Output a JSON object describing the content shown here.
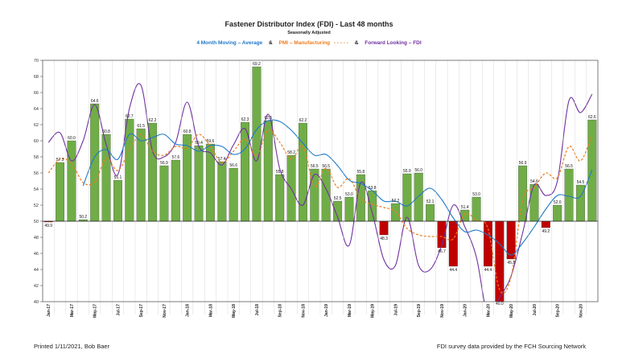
{
  "chart_data": {
    "type": "bar",
    "title": "Fastener Distributor Index (FDI) - Last 48 months",
    "subtitle": "Seasonally Adjusted",
    "legend": {
      "position": "top",
      "items": [
        {
          "text": "4 Month Moving – Average",
          "color": "#1f78c8"
        },
        {
          "text": "&",
          "color": "#222222"
        },
        {
          "text": "PMI – Manufacturing",
          "color": "#ee7d1e",
          "sample": "- - - - -"
        },
        {
          "text": "&",
          "color": "#222222"
        },
        {
          "text": "Forward Looking – FDI",
          "color": "#7030a0"
        }
      ]
    },
    "ylim": [
      40,
      70
    ],
    "yticks": [
      40,
      42,
      44,
      46,
      48,
      50,
      52,
      54,
      56,
      58,
      60,
      62,
      64,
      66,
      68,
      70
    ],
    "baseline": 50,
    "grid": false,
    "xticklabels": [
      "Jan-17",
      "",
      "Mar-17",
      "",
      "May-17",
      "",
      "Jul-17",
      "",
      "Sep-17",
      "",
      "Nov-17",
      "",
      "Jan-18",
      "",
      "Mar-18",
      "",
      "May-18",
      "",
      "Jul-18",
      "",
      "Sep-18",
      "",
      "Nov-18",
      "",
      "Jan-19",
      "",
      "Mar-19",
      "",
      "May-19",
      "",
      "Jul-19",
      "",
      "Sep-19",
      "",
      "Nov-19",
      "",
      "Jan-20",
      "",
      "Mar-20",
      "",
      "May-20",
      "",
      "Jul-20",
      "",
      "Sep-20",
      "",
      "Nov-20",
      ""
    ],
    "bar_colors": {
      "above": "#70ad47",
      "below": "#c00000"
    },
    "series": [
      {
        "name": "FDI",
        "kind": "bar",
        "values": [
          49.9,
          57.3,
          60.0,
          50.2,
          64.6,
          60.8,
          55.1,
          62.7,
          61.5,
          62.2,
          56.9,
          57.6,
          60.8,
          59.4,
          59.6,
          57.4,
          56.6,
          62.3,
          69.2,
          62.5,
          55.8,
          58.2,
          62.2,
          56.5,
          56.5,
          52.5,
          53.0,
          55.8,
          53.8,
          48.3,
          52.2,
          55.9,
          56.0,
          52.1,
          46.7,
          44.4,
          51.4,
          53.0,
          44.4,
          40.0,
          45.3,
          56.9,
          54.6,
          49.2,
          52.0,
          56.5,
          54.5,
          62.6
        ],
        "labels": [
          "49.9",
          "57.3",
          "60.0",
          "50.2",
          "64.6",
          "60.8",
          "55.1",
          "62.7",
          "61.5",
          "62.2",
          "56.9",
          "57.6",
          "60.8",
          "59.4",
          "59.6",
          "57.4",
          "56.6",
          "62.3",
          "69.2",
          "62.5",
          "55.8",
          "58.2",
          "62.2",
          "56.5",
          "56.5",
          "52.5",
          "53.0",
          "55.8",
          "53.8",
          "48.3",
          "52.2",
          "55.9",
          "56.0",
          "52.1",
          "46.7",
          "44.4",
          "51.4",
          "53.0",
          "44.4",
          "40.0",
          "45.3",
          "56.9",
          "54.6",
          "49.2",
          "52.0",
          "56.5",
          "54.5",
          "62.6"
        ]
      },
      {
        "name": "4 Month Moving – Average",
        "kind": "line",
        "color": "#1f78c8",
        "start_index": 3,
        "values": [
          null,
          null,
          null,
          54.4,
          58.0,
          58.9,
          57.7,
          60.8,
          60.0,
          60.4,
          60.8,
          59.6,
          59.4,
          58.7,
          59.4,
          59.3,
          58.3,
          59.0,
          61.4,
          62.5,
          62.4,
          61.3,
          59.7,
          58.2,
          58.3,
          56.9,
          55.1,
          54.7,
          53.8,
          52.5,
          52.5,
          51.9,
          53.1,
          54.1,
          52.7,
          50.4,
          48.7,
          48.9,
          48.3,
          47.2,
          45.8,
          47.3,
          49.3,
          51.5,
          53.2,
          53.1,
          53.1,
          56.4
        ]
      },
      {
        "name": "PMI – Manufacturing",
        "kind": "line",
        "color": "#ee7d1e",
        "dashed": true,
        "values": [
          56.0,
          57.7,
          57.2,
          54.8,
          54.9,
          57.8,
          56.3,
          58.8,
          60.8,
          58.7,
          58.2,
          59.3,
          59.1,
          60.8,
          59.3,
          57.3,
          58.7,
          60.2,
          58.1,
          61.3,
          59.8,
          57.7,
          59.3,
          54.3,
          56.6,
          54.2,
          55.3,
          52.8,
          52.1,
          51.7,
          51.2,
          49.1,
          48.3,
          48.1,
          48.1,
          47.8,
          50.9,
          50.1,
          49.1,
          41.5,
          43.1,
          52.6,
          54.2,
          56.0,
          55.4,
          59.3,
          57.5,
          60.7
        ]
      },
      {
        "name": "Forward Looking – FDI",
        "kind": "line",
        "color": "#7030a0",
        "values": [
          59.8,
          61.0,
          57.5,
          60.0,
          64.5,
          59.5,
          55.8,
          64.0,
          66.9,
          58.7,
          58.0,
          59.8,
          64.8,
          59.3,
          58.5,
          57.0,
          59.5,
          61.5,
          57.5,
          63.3,
          56.5,
          54.0,
          52.0,
          55.8,
          54.0,
          50.5,
          47.0,
          54.8,
          51.0,
          45.2,
          44.5,
          50.5,
          44.5,
          44.0,
          47.0,
          52.0,
          49.3,
          45.5,
          38.2,
          40.5,
          43.2,
          48.6,
          54.5,
          53.2,
          55.0,
          65.0,
          63.5,
          65.8
        ]
      }
    ]
  },
  "footer": {
    "left": "Printed 1/11/2021, Bob Baer",
    "right": "FDI survey data provided by the FCH Sourcing Network"
  }
}
